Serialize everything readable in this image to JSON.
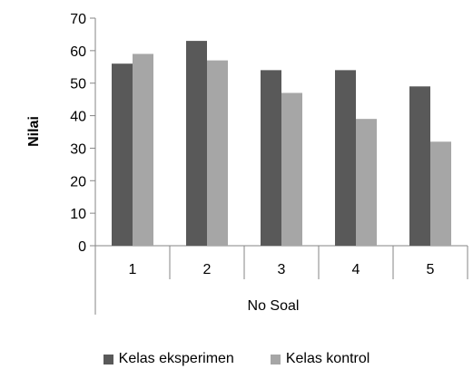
{
  "chart_data": {
    "type": "bar",
    "title": "",
    "xlabel": "No Soal",
    "ylabel": "Nilai",
    "ylim": [
      0,
      70
    ],
    "yticks": [
      0,
      10,
      20,
      30,
      40,
      50,
      60,
      70
    ],
    "categories": [
      "1",
      "2",
      "3",
      "4",
      "5"
    ],
    "series": [
      {
        "name": "Kelas eksperimen",
        "color": "#595959",
        "values": [
          56,
          63,
          54,
          54,
          49
        ]
      },
      {
        "name": "Kelas kontrol",
        "color": "#a6a6a6",
        "values": [
          59,
          57,
          47,
          39,
          32
        ]
      }
    ],
    "grid": false,
    "legend_position": "bottom"
  }
}
